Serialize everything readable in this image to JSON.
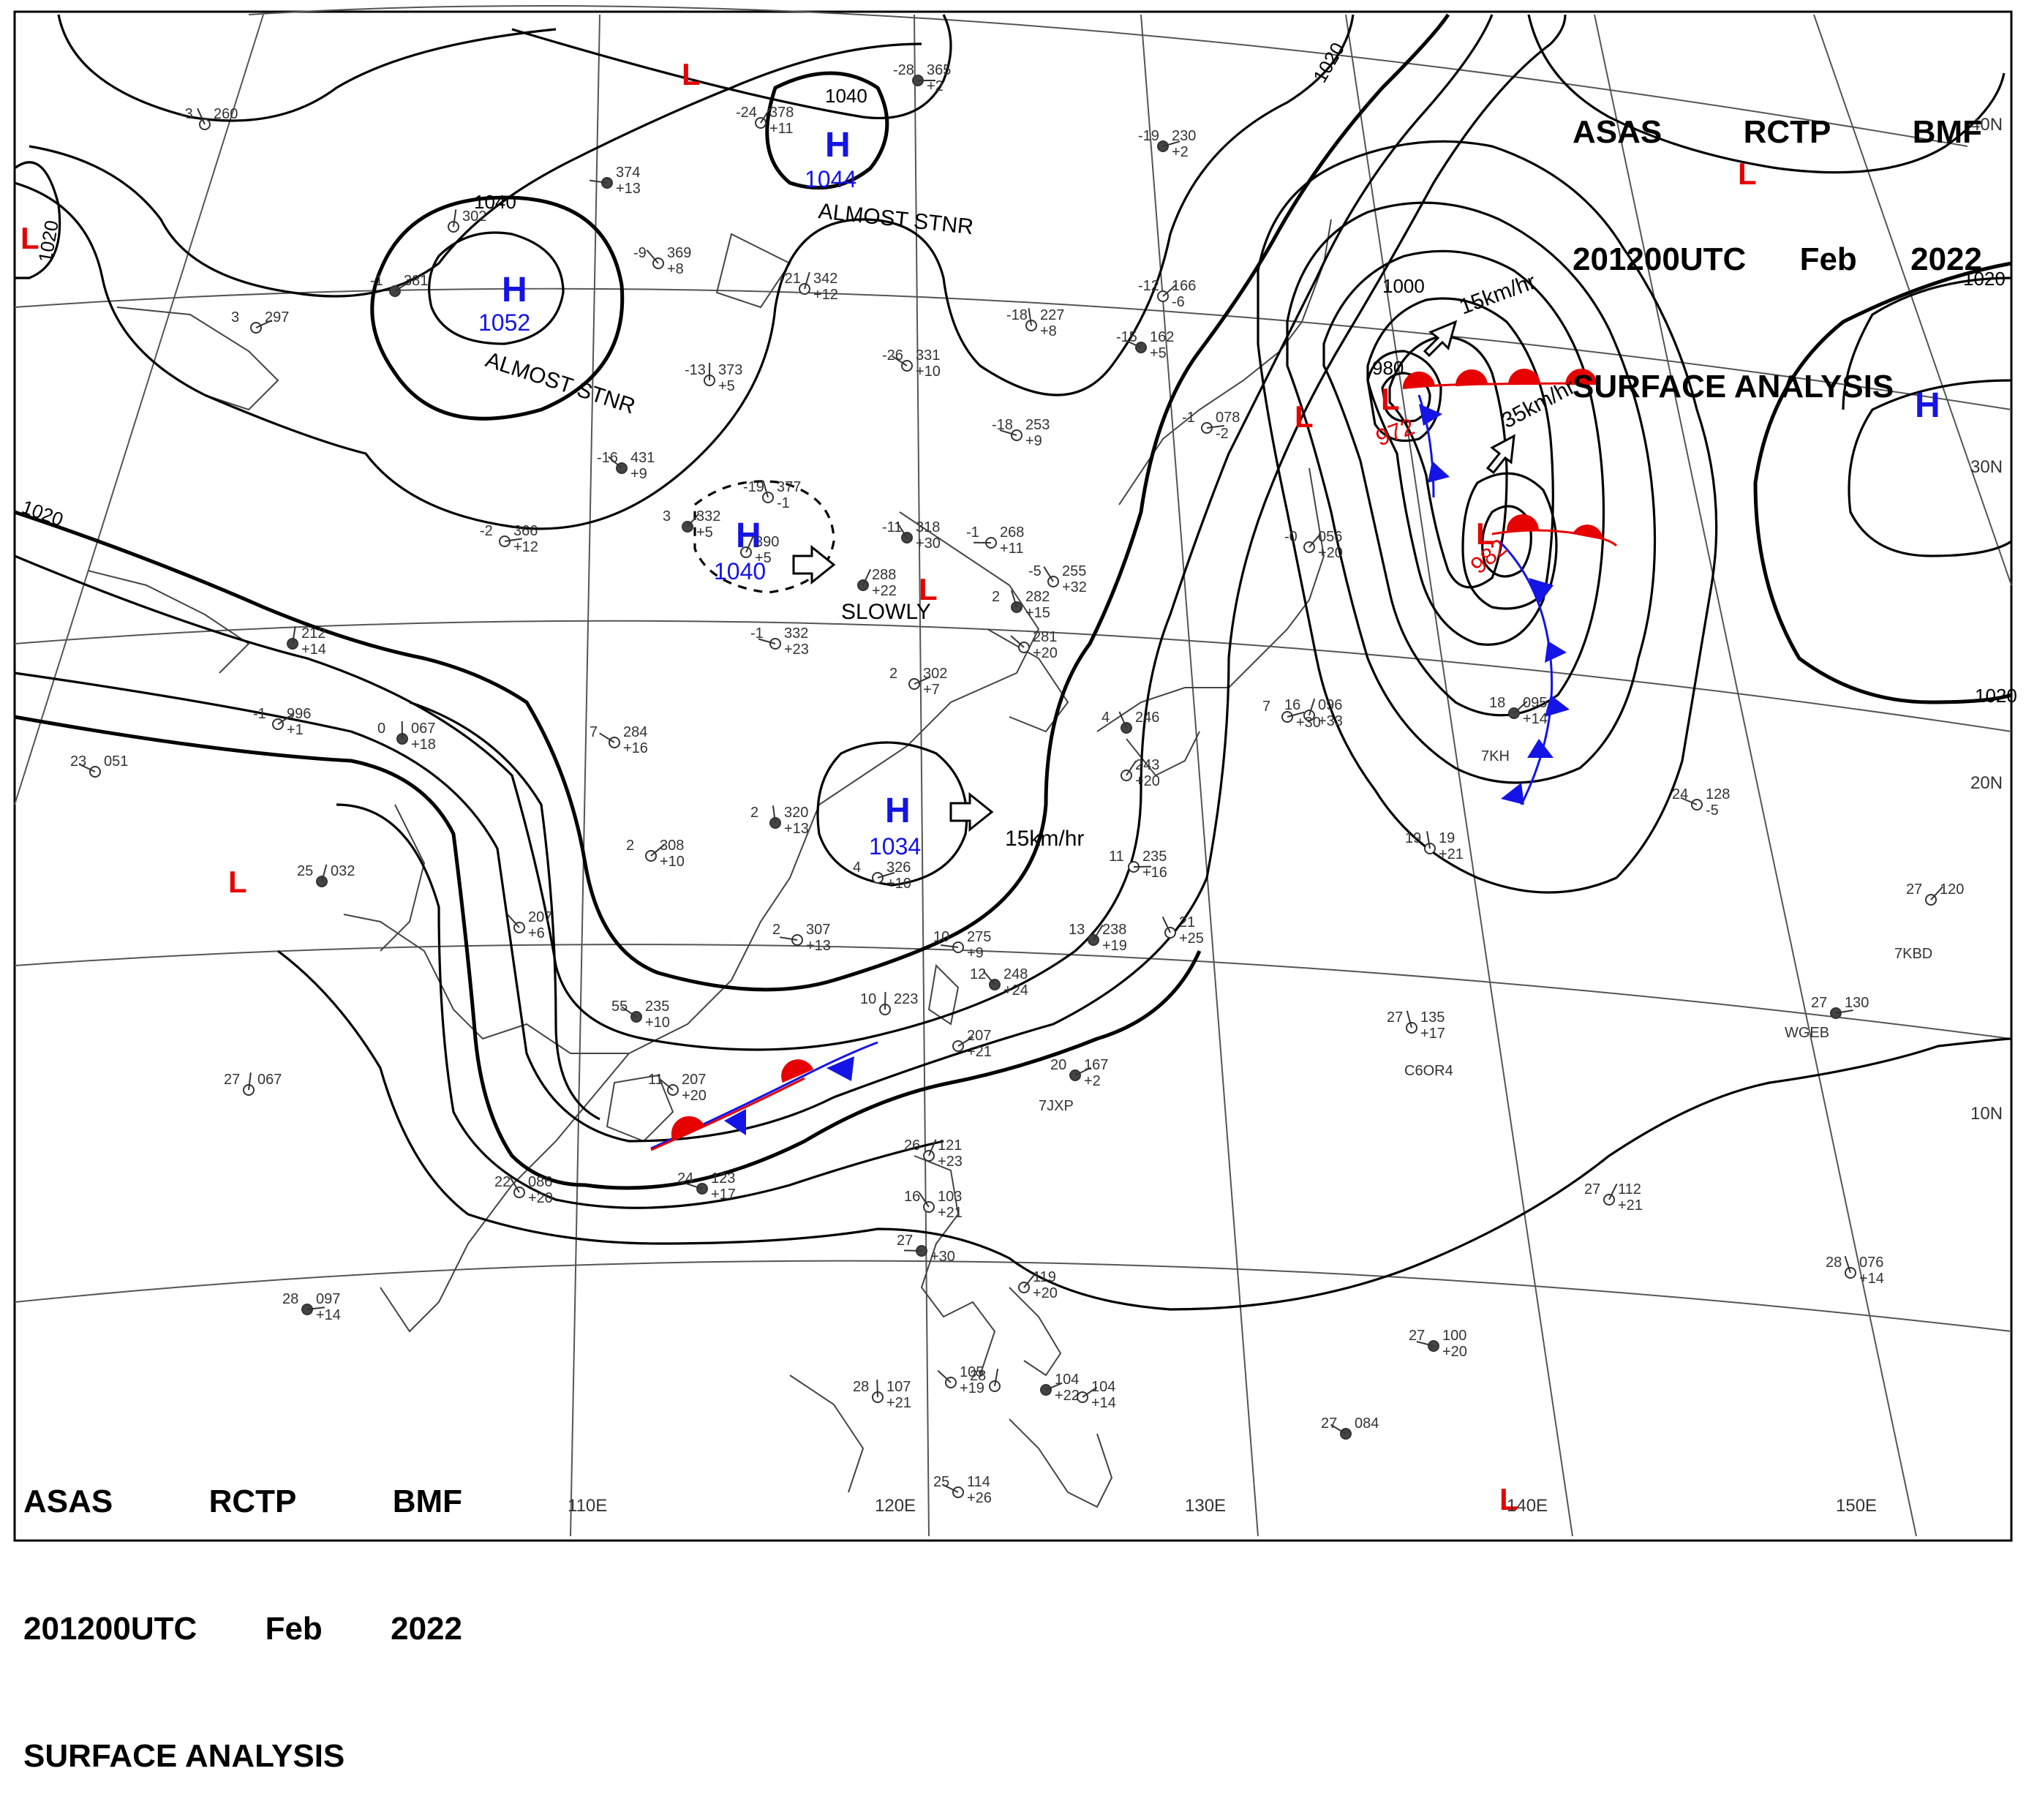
{
  "header": {
    "line1": [
      "ASAS",
      "RCTP",
      "BMF"
    ],
    "line2": [
      "201200UTC",
      "Feb",
      "2022"
    ],
    "line3": "SURFACE ANALYSIS"
  },
  "colors": {
    "high": "#1414e6",
    "low": "#e60000",
    "isobar": "#000000",
    "grid": "#555555",
    "coast": "#444444",
    "warm_front": "#e60000",
    "cold_front": "#1414e6"
  },
  "longitude_labels": [
    "110E",
    "120E",
    "130E",
    "140E",
    "150E"
  ],
  "latitude_labels": [
    "40N",
    "30N",
    "20N",
    "10N"
  ],
  "isobar_labels": [
    "1040",
    "1040",
    "1020",
    "1020",
    "1020",
    "1020",
    "1020",
    "1000",
    "980"
  ],
  "centers": [
    {
      "type": "H",
      "pressure": "1052",
      "note": "ALMOST STNR"
    },
    {
      "type": "H",
      "pressure": "1044",
      "note": "ALMOST STNR"
    },
    {
      "type": "H",
      "pressure": "1040",
      "note": "SLOWLY"
    },
    {
      "type": "H",
      "pressure": "1034",
      "note": "15km/hr"
    },
    {
      "type": "H",
      "pressure": "",
      "note": ""
    },
    {
      "type": "L",
      "pressure": "972",
      "note": "15km/hr"
    },
    {
      "type": "L",
      "pressure": "982",
      "note": "35km/hr"
    },
    {
      "type": "L",
      "pressure": "",
      "note": ""
    },
    {
      "type": "L",
      "pressure": "",
      "note": ""
    },
    {
      "type": "L",
      "pressure": "",
      "note": ""
    },
    {
      "type": "L",
      "pressure": "",
      "note": ""
    },
    {
      "type": "L",
      "pressure": "",
      "note": ""
    },
    {
      "type": "L",
      "pressure": "",
      "note": ""
    },
    {
      "type": "L",
      "pressure": "",
      "note": ""
    }
  ],
  "stations": [
    {
      "t": "-28",
      "p": "365",
      "d": "+2"
    },
    {
      "t": "-24",
      "p": "378",
      "d": "+11"
    },
    {
      "t": "-3",
      "p": "260",
      "d": ""
    },
    {
      "t": "",
      "p": "374",
      "d": "+13"
    },
    {
      "t": "-9",
      "p": "369",
      "d": "+8"
    },
    {
      "t": "-21",
      "p": "342",
      "d": "+12"
    },
    {
      "t": "-19",
      "p": "230",
      "d": "+2"
    },
    {
      "t": "-12",
      "p": "166",
      "d": "-6"
    },
    {
      "t": "-18",
      "p": "227",
      "d": "+8"
    },
    {
      "t": "-15",
      "p": "162",
      "d": "+5"
    },
    {
      "t": "-26",
      "p": "331",
      "d": "+10"
    },
    {
      "t": "-13",
      "p": "373",
      "d": "+5"
    },
    {
      "t": "-1",
      "p": "381",
      "d": ""
    },
    {
      "t": "3",
      "p": "297",
      "d": ""
    },
    {
      "t": "",
      "p": "302",
      "d": ""
    },
    {
      "t": "-16",
      "p": "431",
      "d": "+9"
    },
    {
      "t": "-18",
      "p": "253",
      "d": "+9"
    },
    {
      "t": "-19",
      "p": "377",
      "d": "-1"
    },
    {
      "t": "3",
      "p": "332",
      "d": "+5"
    },
    {
      "t": "-2",
      "p": "366",
      "d": "+12"
    },
    {
      "t": "",
      "p": "390",
      "d": "+5"
    },
    {
      "t": "-11",
      "p": "318",
      "d": "+30"
    },
    {
      "t": "-1",
      "p": "268",
      "d": "+11"
    },
    {
      "t": "-5",
      "p": "255",
      "d": "+32"
    },
    {
      "t": "",
      "p": "288",
      "d": "+22"
    },
    {
      "t": "-1",
      "p": "078",
      "d": "-2"
    },
    {
      "t": "-0",
      "p": "056",
      "d": "+20"
    },
    {
      "t": "2",
      "p": "282",
      "d": "+15"
    },
    {
      "t": "-1",
      "p": "332",
      "d": "+23"
    },
    {
      "t": "",
      "p": "281",
      "d": "+20"
    },
    {
      "t": "",
      "p": "212",
      "d": "+14"
    },
    {
      "t": "2",
      "p": "302",
      "d": "+7"
    },
    {
      "t": "-1",
      "p": "996",
      "d": "+1"
    },
    {
      "t": "0",
      "p": "067",
      "d": "+18"
    },
    {
      "t": "7",
      "p": "284",
      "d": "+16"
    },
    {
      "t": "23",
      "p": "051",
      "d": ""
    },
    {
      "t": "2",
      "p": "320",
      "d": "+13"
    },
    {
      "t": "2",
      "p": "308",
      "d": "+10"
    },
    {
      "t": "4",
      "p": "326",
      "d": "+10"
    },
    {
      "t": "25",
      "p": "032",
      "d": ""
    },
    {
      "t": "",
      "p": "207",
      "d": "+6"
    },
    {
      "t": "2",
      "p": "307",
      "d": "+13"
    },
    {
      "t": "4",
      "p": "246",
      "d": ""
    },
    {
      "t": "",
      "p": "243",
      "d": "+20"
    },
    {
      "t": "11",
      "p": "235",
      "d": "+16"
    },
    {
      "t": "13",
      "p": "238",
      "d": "+19"
    },
    {
      "t": "",
      "p": "21",
      "d": "+25"
    },
    {
      "t": "10",
      "p": "275",
      "d": "+9"
    },
    {
      "t": "12",
      "p": "248",
      "d": "+24"
    },
    {
      "t": "16",
      "p": "096",
      "d": "+33"
    },
    {
      "t": "7",
      "p": "",
      "d": "+30"
    },
    {
      "t": "18",
      "p": "095",
      "d": "+14"
    },
    {
      "t": "19",
      "p": "19",
      "d": "+21"
    },
    {
      "t": "24",
      "p": "128",
      "d": "-5"
    },
    {
      "t": "55",
      "p": "235",
      "d": "+10"
    },
    {
      "t": "10",
      "p": "223",
      "d": ""
    },
    {
      "t": "",
      "p": "207",
      "d": "+21"
    },
    {
      "t": "20",
      "p": "167",
      "d": "+2"
    },
    {
      "t": "27",
      "p": "067",
      "d": ""
    },
    {
      "t": "11",
      "p": "207",
      "d": "+20"
    },
    {
      "t": "24",
      "p": "123",
      "d": "+17"
    },
    {
      "t": "27",
      "p": "135",
      "d": "+17"
    },
    {
      "t": "27",
      "p": "120",
      "d": ""
    },
    {
      "t": "27",
      "p": "130",
      "d": ""
    },
    {
      "t": "26",
      "p": "121",
      "d": "+23"
    },
    {
      "t": "16",
      "p": "103",
      "d": "+21"
    },
    {
      "t": "27",
      "p": "",
      "d": "+30"
    },
    {
      "t": "22",
      "p": "086",
      "d": "+20"
    },
    {
      "t": "27",
      "p": "112",
      "d": "+21"
    },
    {
      "t": "28",
      "p": "097",
      "d": "+14"
    },
    {
      "t": "",
      "p": "119",
      "d": "+20"
    },
    {
      "t": "28",
      "p": "076",
      "d": "+14"
    },
    {
      "t": "27",
      "p": "100",
      "d": "+20"
    },
    {
      "t": "",
      "p": "105",
      "d": "+19"
    },
    {
      "t": "28",
      "p": "",
      "d": ""
    },
    {
      "t": "",
      "p": "104",
      "d": "+22"
    },
    {
      "t": "",
      "p": "104",
      "d": "+14"
    },
    {
      "t": "28",
      "p": "107",
      "d": "+21"
    },
    {
      "t": "27",
      "p": "084",
      "d": ""
    },
    {
      "t": "25",
      "p": "114",
      "d": "+26"
    }
  ],
  "ship_ids": [
    "7KBD",
    "WGEB",
    "C6OR4",
    "7JXP",
    "7KH"
  ]
}
